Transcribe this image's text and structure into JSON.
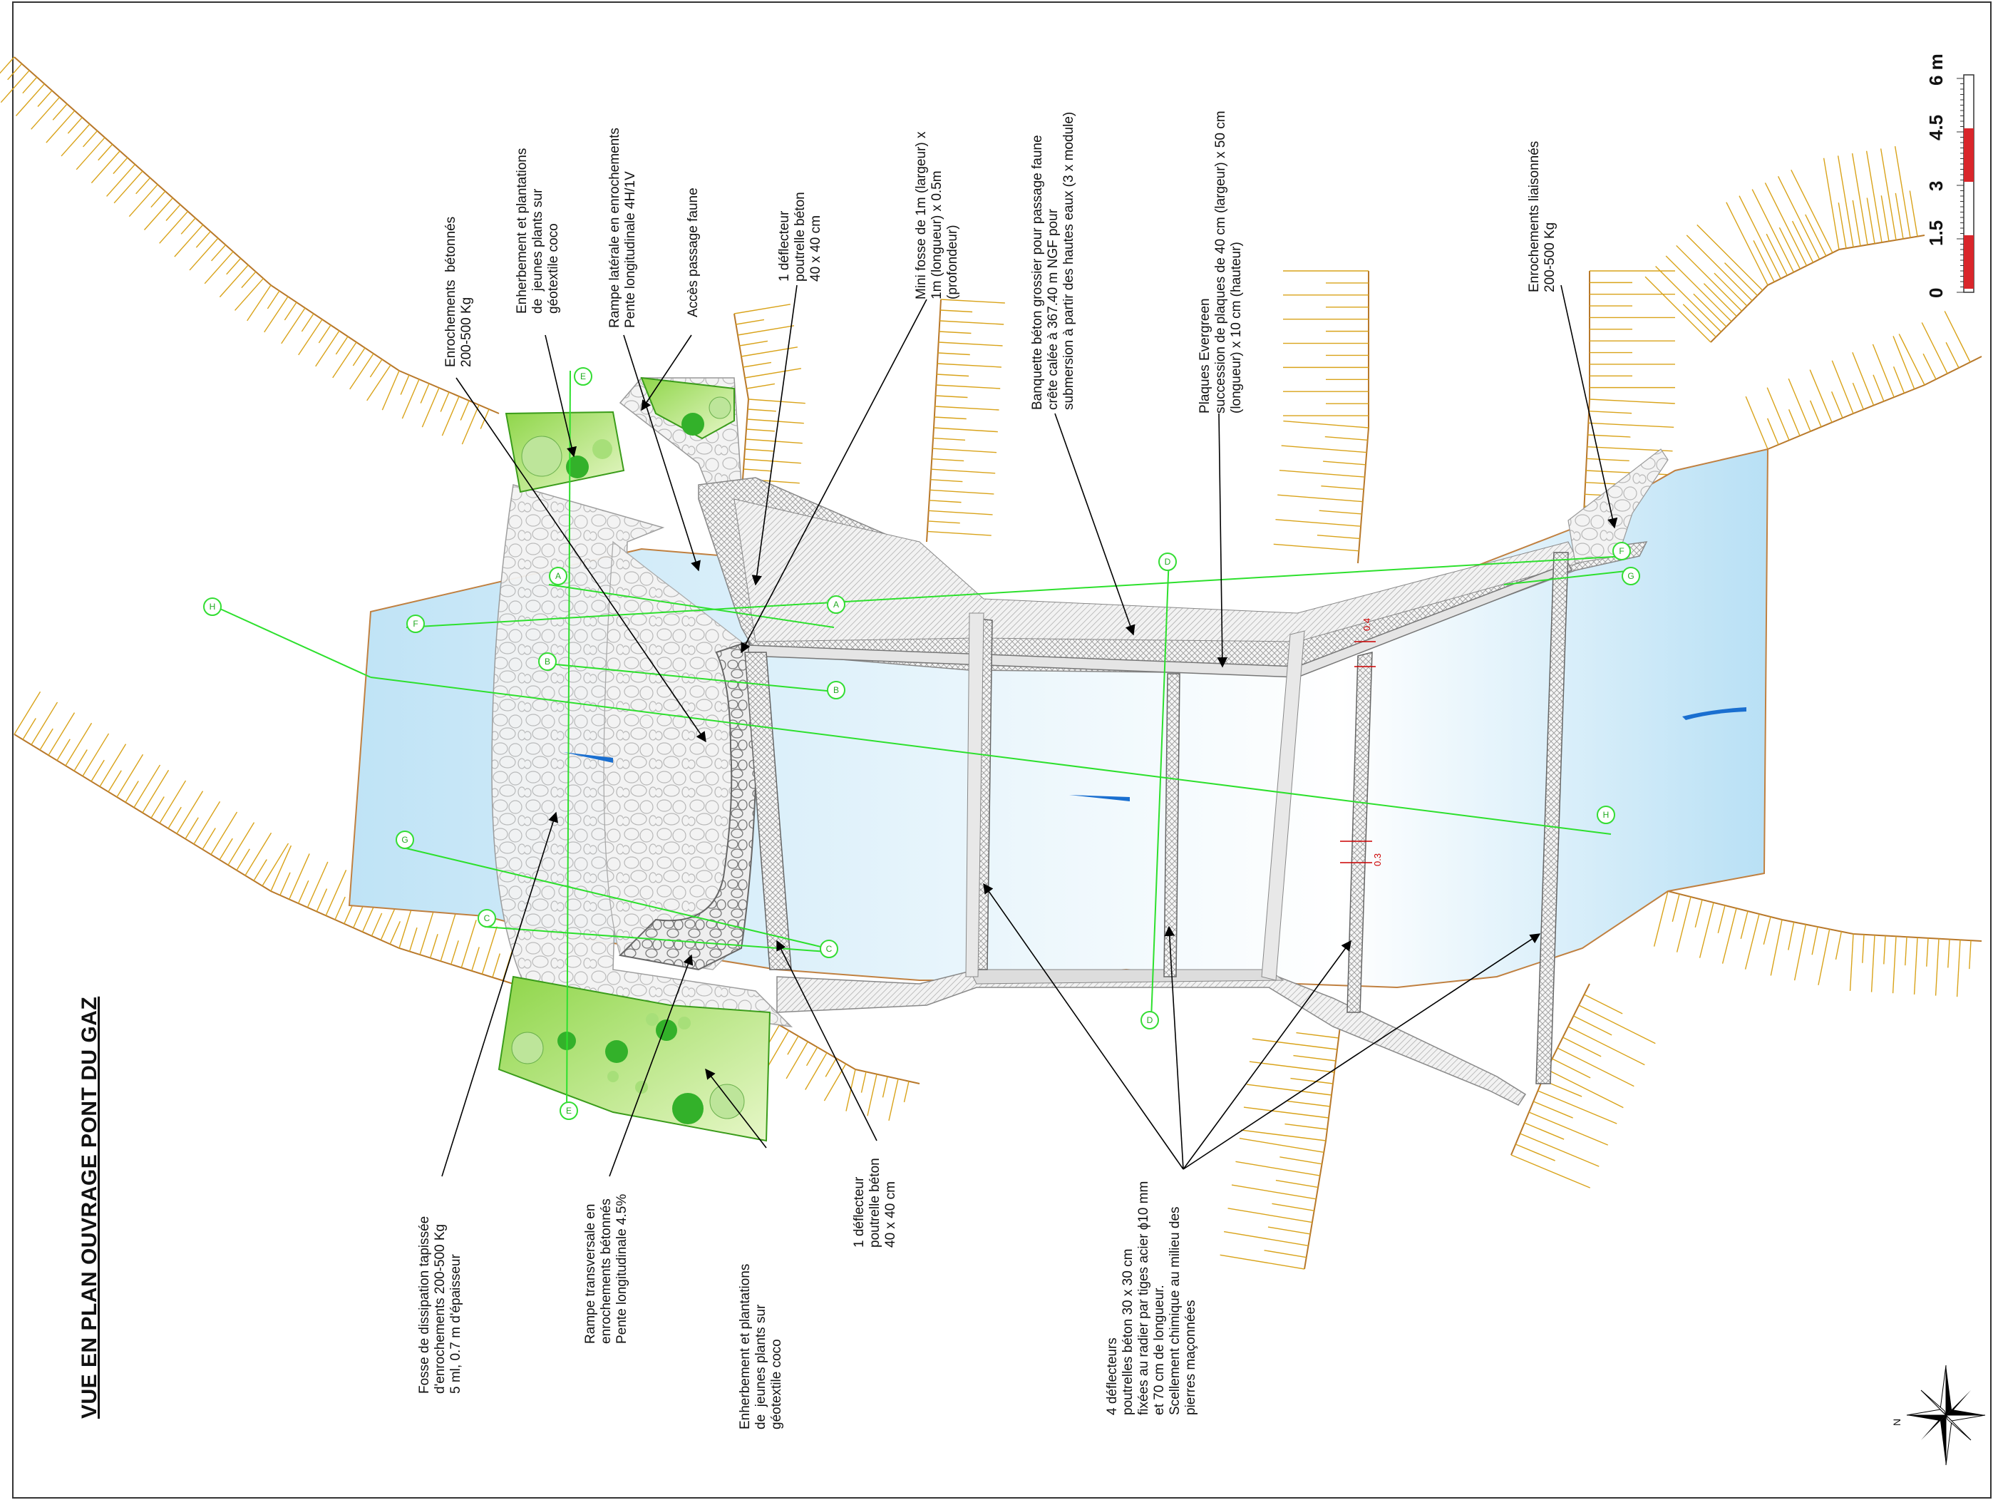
{
  "title": "VUE EN PLAN OUVRAGE PONT DU GAZ",
  "scale": {
    "ticks": [
      "0",
      "1.5",
      "3",
      "4.5",
      "6 m"
    ]
  },
  "dimensions": {
    "a": "0.4",
    "b": "0.3"
  },
  "sections": [
    "A",
    "B",
    "C",
    "D",
    "E",
    "F",
    "G",
    "H"
  ],
  "labels": {
    "enrochements_betonnes": "Enrochements  bétonnés\n200-500 Kg",
    "enherbement_top": "Enherbement et plantations\nde  jeunes plants sur\ngéotextile coco",
    "rampe_laterale": "Rampe latérale en enrochements\nPente longitudinale 4H/1V",
    "acces_faune": "Accès passage faune",
    "deflecteur_top": "1 déflecteur\npoutrelle béton\n40 x 40 cm",
    "mini_fosse": "Mini fosse de 1m (largeur) x\n1m (longueur) x 0.5m\n(profondeur)",
    "banquette": "Banquette béton grossier pour passage faune\ncrête calée à 367.40 m NGF pour\nsubmersion à partir des hautes eaux (3 x module)",
    "plaques": "Plaques Evergreen\nsuccession de plaques de 40 cm (largeur) x 50 cm\n(longueur) x 10 cm (hauteur)",
    "enrochements_liaisonnes": "Enrochements liaisonnés\n200-500 Kg",
    "fosse_dissipation": "Fosse de dissipation tapissée\nd'enrochements 200-500 Kg\n5 ml, 0.7 m d'épaisseur",
    "rampe_transversale": "Rampe transversale en\nenrochements bétonnés\nPente longitudinale 4.5%",
    "enherbement_bottom": "Enherbement et plantations\nde  jeunes plants sur\ngéotextile coco",
    "deflecteur_bottom": "1 déflecteur\npoutrelle béton\n40 x 40 cm",
    "quatre_deflecteurs": "4 déflecteurs\npoutrelles béton 30 x 30 cm\nfixées au radier par tiges acier ɸ10 mm\net 70 cm de longueur.\nScellement chimique au milieu des\npierres maçonnées"
  },
  "compass": {
    "north": "N"
  },
  "colors": {
    "water": "#c6e6f6",
    "grass": "#9fdc5f",
    "bank": "#d9a31a",
    "section": "#33dd33",
    "scale_red": "#d9262b"
  }
}
